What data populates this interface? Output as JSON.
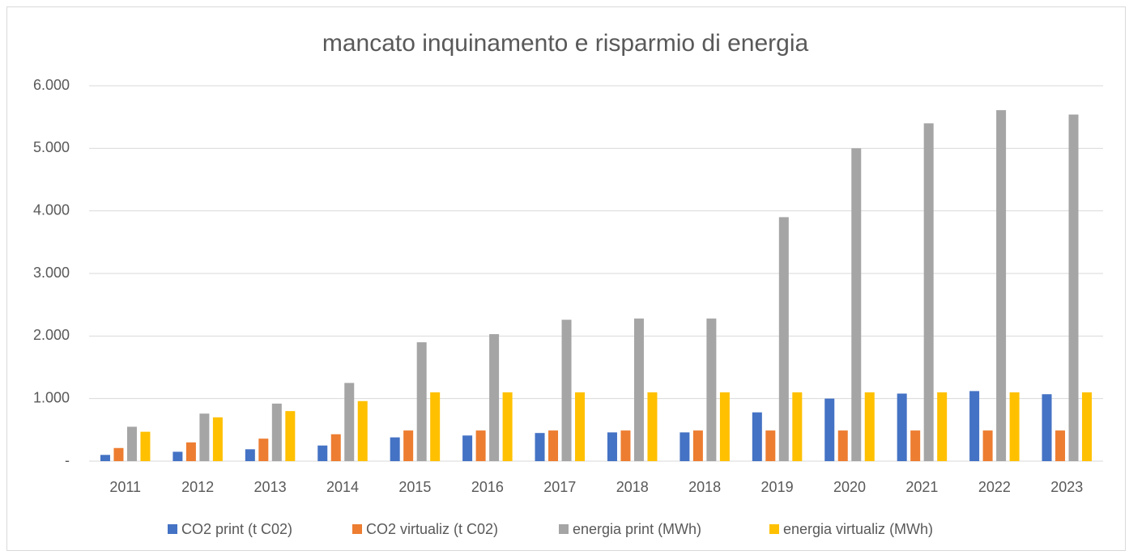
{
  "chart_data": {
    "type": "bar",
    "title": "mancato inquinamento  e risparmio di energia",
    "categories": [
      "2011",
      "2012",
      "2013",
      "2014",
      "2015",
      "2016",
      "2017",
      "2018",
      "2018",
      "2019",
      "2020",
      "2021",
      "2022",
      "2023"
    ],
    "series": [
      {
        "name": "CO2 print (t C02)",
        "color": "#4472c4",
        "values": [
          100,
          150,
          190,
          250,
          380,
          410,
          450,
          460,
          460,
          780,
          1000,
          1080,
          1120,
          1070
        ]
      },
      {
        "name": "CO2 virtualiz (t C02)",
        "color": "#ed7d31",
        "values": [
          210,
          300,
          360,
          430,
          490,
          490,
          490,
          490,
          490,
          490,
          490,
          490,
          490,
          490
        ]
      },
      {
        "name": "energia print (MWh)",
        "color": "#a5a5a5",
        "values": [
          550,
          760,
          920,
          1250,
          1900,
          2030,
          2260,
          2280,
          2280,
          3900,
          5000,
          5400,
          5610,
          5540
        ]
      },
      {
        "name": "energia virtualiz (MWh)",
        "color": "#ffc000",
        "values": [
          470,
          700,
          800,
          960,
          1100,
          1100,
          1100,
          1100,
          1100,
          1100,
          1100,
          1100,
          1100,
          1100
        ]
      }
    ],
    "ylim": [
      0,
      6000
    ],
    "yticks": [
      {
        "value": 0,
        "label": "-"
      },
      {
        "value": 1000,
        "label": "1.000"
      },
      {
        "value": 2000,
        "label": "2.000"
      },
      {
        "value": 3000,
        "label": "3.000"
      },
      {
        "value": 4000,
        "label": "4.000"
      },
      {
        "value": 5000,
        "label": "5.000"
      },
      {
        "value": 6000,
        "label": "6.000"
      }
    ],
    "grid": true,
    "legend": "bottom"
  }
}
